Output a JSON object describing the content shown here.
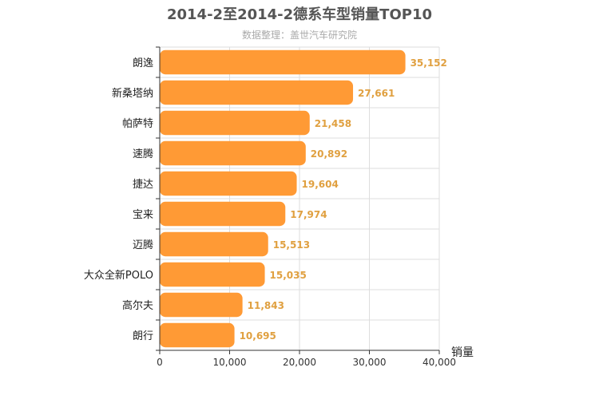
{
  "chart_data": {
    "type": "bar",
    "orientation": "horizontal",
    "title": "2014-2至2014-2德系车型销量TOP10",
    "subtitle": "数据整理：盖世汽车研究院",
    "categories": [
      "朗逸",
      "新桑塔纳",
      "帕萨特",
      "速腾",
      "捷达",
      "宝来",
      "迈腾",
      "大众全新POLO",
      "高尔夫",
      "朗行"
    ],
    "values": [
      35152,
      27661,
      21458,
      20892,
      19604,
      17974,
      15513,
      15035,
      11843,
      10695
    ],
    "value_labels": [
      "35,152",
      "27,661",
      "21,458",
      "20,892",
      "19,604",
      "17,974",
      "15,513",
      "15,035",
      "11,843",
      "10,695"
    ],
    "xlabel": "销量",
    "ylabel": "",
    "xlim": [
      0,
      40000
    ],
    "x_ticks": [
      0,
      10000,
      20000,
      30000,
      40000
    ],
    "x_tick_labels": [
      "0",
      "10,000",
      "20,000",
      "30,000",
      "40,000"
    ],
    "grid": true,
    "colors": {
      "bar": "#ff9a35",
      "value_label": "#e0a040",
      "grid": "#dddddd",
      "axis": "#333333"
    }
  }
}
